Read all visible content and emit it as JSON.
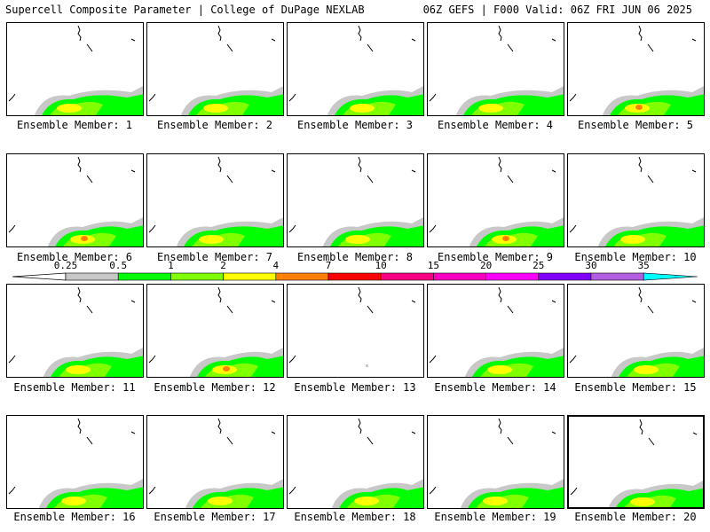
{
  "header": {
    "title": "Supercell Composite Parameter | College of DuPage NEXLAB",
    "run_info": "06Z GEFS | F000 Valid: 06Z FRI JUN 06 2025"
  },
  "member_label_prefix": "Ensemble Member: ",
  "selected_member": 20,
  "members": [
    {
      "id": 1,
      "label": "Ensemble Member: 1",
      "peak": "yellow"
    },
    {
      "id": 2,
      "label": "Ensemble Member: 2",
      "peak": "yellow"
    },
    {
      "id": 3,
      "label": "Ensemble Member: 3",
      "peak": "yellow"
    },
    {
      "id": 4,
      "label": "Ensemble Member: 4",
      "peak": "yellow"
    },
    {
      "id": 5,
      "label": "Ensemble Member: 5",
      "peak": "orange"
    },
    {
      "id": 6,
      "label": "Ensemble Member: 6",
      "peak": "orange"
    },
    {
      "id": 7,
      "label": "Ensemble Member: 7",
      "peak": "yellow"
    },
    {
      "id": 8,
      "label": "Ensemble Member: 8",
      "peak": "yellow"
    },
    {
      "id": 9,
      "label": "Ensemble Member: 9",
      "peak": "orange"
    },
    {
      "id": 10,
      "label": "Ensemble Member: 10",
      "peak": "yellow"
    },
    {
      "id": 11,
      "label": "Ensemble Member: 11",
      "peak": "yellow"
    },
    {
      "id": 12,
      "label": "Ensemble Member: 12",
      "peak": "orange"
    },
    {
      "id": 13,
      "label": "Ensemble Member: 13",
      "peak": "none"
    },
    {
      "id": 14,
      "label": "Ensemble Member: 14",
      "peak": "yellow"
    },
    {
      "id": 15,
      "label": "Ensemble Member: 15",
      "peak": "yellow"
    },
    {
      "id": 16,
      "label": "Ensemble Member: 16",
      "peak": "yellow"
    },
    {
      "id": 17,
      "label": "Ensemble Member: 17",
      "peak": "yellow"
    },
    {
      "id": 18,
      "label": "Ensemble Member: 18",
      "peak": "yellow"
    },
    {
      "id": 19,
      "label": "Ensemble Member: 19",
      "peak": "yellow"
    },
    {
      "id": 20,
      "label": "Ensemble Member: 20",
      "peak": "yellow"
    }
  ],
  "colorbar": {
    "ticks": [
      "0.25",
      "0.5",
      "1",
      "2",
      "4",
      "7",
      "10",
      "15",
      "20",
      "25",
      "30",
      "35"
    ],
    "colors": [
      "#c8c8c8",
      "#00ff00",
      "#7fff00",
      "#ffff00",
      "#ff8000",
      "#ff0000",
      "#ff0080",
      "#ff00c0",
      "#ff00ff",
      "#8000ff",
      "#b060e0",
      "#00ffff"
    ]
  }
}
